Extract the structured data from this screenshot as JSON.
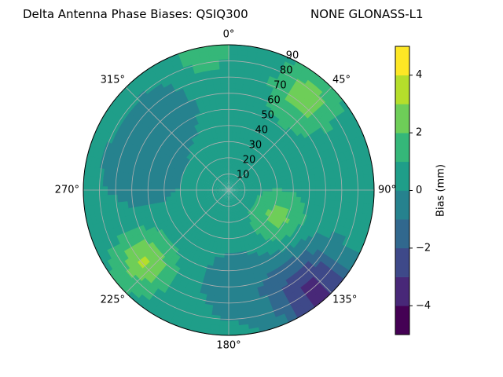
{
  "title_left": "Delta Antenna Phase Biases: QSIQ300",
  "title_right": "NONE GLONASS-L1",
  "chart_data": {
    "type": "polar-contour",
    "theta_direction": "clockwise",
    "theta_zero_location": "N",
    "angle_ticks": [
      "0°",
      "45°",
      "90°",
      "135°",
      "180°",
      "225°",
      "270°",
      "315°"
    ],
    "radial_ticks": [
      "10",
      "20",
      "30",
      "40",
      "50",
      "60",
      "70",
      "80",
      "90"
    ],
    "radial_range": [
      0,
      90
    ],
    "grid": true,
    "colorbar": {
      "label": "Bias (mm)",
      "min": -5,
      "max": 5,
      "ticks": [
        "4",
        "2",
        "0",
        "−2",
        "−4"
      ],
      "levels": [
        -5,
        -4,
        -3,
        -2,
        -1,
        0,
        1,
        2,
        3,
        4,
        5
      ],
      "colors": [
        "#440154",
        "#482878",
        "#3e4989",
        "#31688e",
        "#26828e",
        "#1f9e89",
        "#35b779",
        "#6ece58",
        "#b5de2b",
        "#fde725"
      ]
    },
    "field": {
      "background_bias": 0.5,
      "features": [
        {
          "name": "south-east low",
          "azimuth": 140,
          "zenith": 82,
          "bias": -3.8,
          "spread": 18
        },
        {
          "name": "west band low",
          "azimuth": 285,
          "zenith": 55,
          "bias": -1.3,
          "spread": 18
        },
        {
          "name": "north-west low",
          "azimuth": 320,
          "zenith": 60,
          "bias": -1.2,
          "spread": 14
        },
        {
          "name": "south low",
          "azimuth": 175,
          "zenith": 60,
          "bias": -1.2,
          "spread": 16
        },
        {
          "name": "south-west high",
          "azimuth": 230,
          "zenith": 68,
          "bias": 2.6,
          "spread": 12
        },
        {
          "name": "north-east high",
          "azimuth": 40,
          "zenith": 75,
          "bias": 2.0,
          "spread": 14
        },
        {
          "name": "east high",
          "azimuth": 120,
          "zenith": 35,
          "bias": 1.9,
          "spread": 11
        },
        {
          "name": "north rim high",
          "azimuth": 350,
          "zenith": 88,
          "bias": 1.4,
          "spread": 10
        }
      ]
    }
  }
}
